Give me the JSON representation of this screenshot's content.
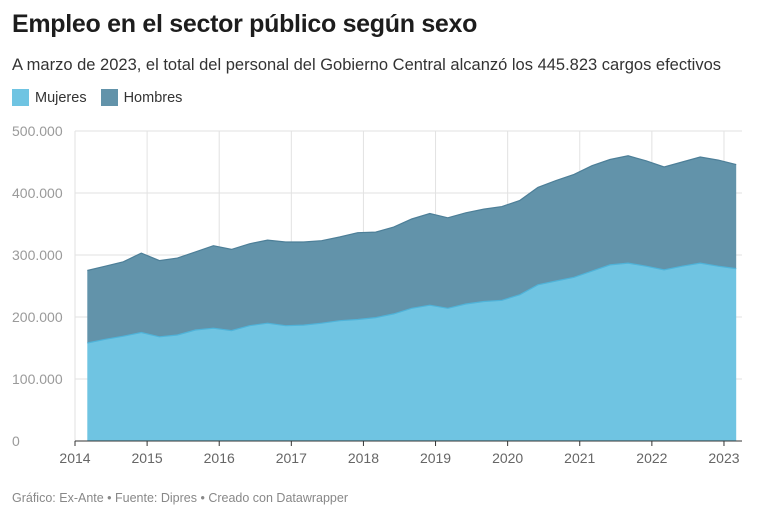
{
  "title": "Empleo en el sector público según sexo",
  "subtitle": "A marzo de 2023, el total del personal del Gobierno Central alcanzó los 445.823 cargos efectivos",
  "footer": "Gráfico: Ex-Ante • Fuente: Dipres • Creado con Datawrapper",
  "colors": {
    "mujeres": "#6fc4e2",
    "hombres": "#6293aa",
    "mujeres_line": "#4fb3d9",
    "hombres_line": "#4d7f98",
    "grid": "#e2e2e2",
    "axis": "#333333"
  },
  "chart_data": {
    "type": "area",
    "stacked": true,
    "xlabel": "",
    "ylabel": "",
    "xlim": [
      2014,
      2023.25
    ],
    "ylim": [
      0,
      500000
    ],
    "y_ticks": [
      "0",
      "100.000",
      "200.000",
      "300.000",
      "400.000",
      "500.000"
    ],
    "y_tick_values": [
      0,
      100000,
      200000,
      300000,
      400000,
      500000
    ],
    "x_ticks": [
      "2014",
      "2015",
      "2016",
      "2017",
      "2018",
      "2019",
      "2020",
      "2021",
      "2022",
      "2023"
    ],
    "x_tick_values": [
      2014,
      2015,
      2016,
      2017,
      2018,
      2019,
      2020,
      2021,
      2022,
      2023
    ],
    "grid": true,
    "legend_position": "top-left",
    "x": [
      2014.17,
      2014.42,
      2014.67,
      2014.92,
      2015.17,
      2015.42,
      2015.67,
      2015.92,
      2016.17,
      2016.42,
      2016.67,
      2016.92,
      2017.17,
      2017.42,
      2017.67,
      2017.92,
      2018.17,
      2018.42,
      2018.67,
      2018.92,
      2019.17,
      2019.42,
      2019.67,
      2019.92,
      2020.17,
      2020.42,
      2020.67,
      2020.92,
      2021.17,
      2021.42,
      2021.67,
      2021.92,
      2022.17,
      2022.42,
      2022.67,
      2022.92,
      2023.17
    ],
    "series": [
      {
        "name": "Mujeres",
        "values": [
          158000,
          164000,
          169000,
          175000,
          168000,
          171000,
          179000,
          182000,
          178000,
          186000,
          190000,
          186000,
          187000,
          190000,
          194000,
          196000,
          199000,
          205000,
          214000,
          219000,
          214000,
          221000,
          225000,
          227000,
          236000,
          252000,
          258000,
          264000,
          274000,
          284000,
          287000,
          282000,
          276000,
          282000,
          287000,
          282000,
          278000
        ]
      },
      {
        "name": "Hombres",
        "values": [
          117000,
          118000,
          120000,
          128000,
          123000,
          124000,
          126000,
          133000,
          131000,
          132000,
          134000,
          135000,
          134000,
          133000,
          135000,
          140000,
          138000,
          140000,
          144000,
          148000,
          146000,
          147000,
          149000,
          151000,
          152000,
          157000,
          162000,
          166000,
          170000,
          170000,
          173000,
          170000,
          166000,
          168000,
          171000,
          171000,
          167823
        ]
      }
    ]
  }
}
